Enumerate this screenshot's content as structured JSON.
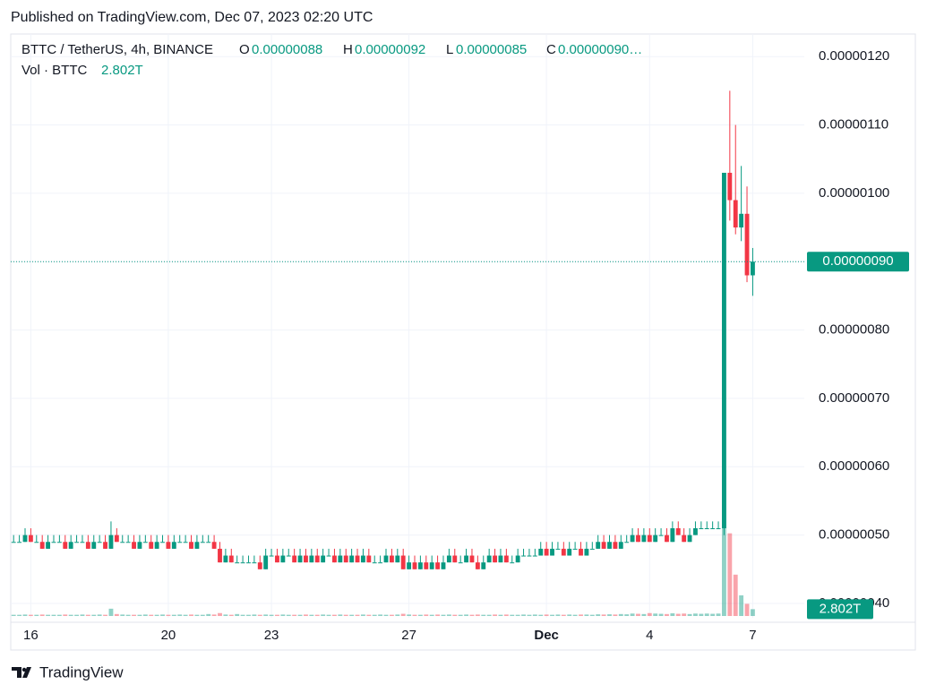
{
  "header": {
    "published": "Published on TradingView.com, Dec 07, 2023 02:20 UTC"
  },
  "footer": {
    "brand": "TradingView"
  },
  "chart_data": {
    "type": "candlestick",
    "legend": {
      "symbol": "BTTC / TetherUS, 4h, BINANCE",
      "o_key": "O",
      "o": "0.00000088",
      "h_key": "H",
      "h": "0.00000092",
      "l_key": "L",
      "l": "0.00000085",
      "c_key": "C",
      "c": "0.00000090…",
      "volume_key": "Vol · BTTC"
    },
    "up_color": "#089981",
    "down_color": "#f23645",
    "categories": [
      null,
      null,
      null,
      null,
      null,
      null,
      null,
      null,
      null,
      null,
      null,
      null,
      null,
      null,
      null,
      null,
      null,
      null,
      null,
      null,
      null,
      null,
      null,
      null,
      null,
      null,
      null,
      null,
      null,
      null,
      null,
      null,
      null,
      null,
      null,
      null,
      null,
      null,
      null,
      null,
      null,
      null,
      null,
      null,
      null,
      null,
      null,
      null,
      null,
      null,
      null,
      null,
      null,
      null,
      null,
      null,
      null,
      null,
      null,
      null,
      null,
      null,
      null,
      null,
      null,
      null,
      null,
      null,
      null,
      null,
      null,
      null,
      null,
      null,
      null,
      null,
      null,
      null,
      null,
      null,
      null,
      null,
      null,
      null,
      null,
      null,
      null,
      null,
      null,
      null,
      null,
      null,
      null,
      null,
      null,
      null,
      null,
      null,
      null,
      null,
      null,
      null,
      null,
      null,
      null,
      null,
      null,
      null,
      null,
      null,
      null,
      null,
      null,
      null,
      null,
      null,
      null,
      null,
      null,
      null,
      null,
      null,
      null,
      null,
      null,
      null,
      null,
      null,
      null,
      null
    ],
    "open": [
      4.9e-07,
      4.9e-07,
      4.9e-07,
      5e-07,
      4.9e-07,
      4.9e-07,
      4.8e-07,
      4.9e-07,
      4.9e-07,
      4.9e-07,
      4.8e-07,
      4.9e-07,
      4.9e-07,
      4.9e-07,
      4.8e-07,
      4.9e-07,
      4.9e-07,
      4.8e-07,
      5e-07,
      4.9e-07,
      4.9e-07,
      4.9e-07,
      4.8e-07,
      4.9e-07,
      4.9e-07,
      4.8e-07,
      4.9e-07,
      4.9e-07,
      4.8e-07,
      4.9e-07,
      4.9e-07,
      4.9e-07,
      4.8e-07,
      4.9e-07,
      4.9e-07,
      4.9e-07,
      4.8e-07,
      4.6e-07,
      4.7e-07,
      4.6e-07,
      4.6e-07,
      4.6e-07,
      4.6e-07,
      4.6e-07,
      4.5e-07,
      4.7e-07,
      4.7e-07,
      4.6e-07,
      4.7e-07,
      4.7e-07,
      4.6e-07,
      4.7e-07,
      4.6e-07,
      4.7e-07,
      4.6e-07,
      4.7e-07,
      4.7e-07,
      4.6e-07,
      4.7e-07,
      4.6e-07,
      4.7e-07,
      4.6e-07,
      4.7e-07,
      4.6e-07,
      4.6e-07,
      4.6e-07,
      4.7e-07,
      4.6e-07,
      4.7e-07,
      4.5e-07,
      4.6e-07,
      4.5e-07,
      4.6e-07,
      4.5e-07,
      4.6e-07,
      4.5e-07,
      4.6e-07,
      4.7e-07,
      4.6e-07,
      4.6e-07,
      4.7e-07,
      4.6e-07,
      4.5e-07,
      4.6e-07,
      4.7e-07,
      4.6e-07,
      4.7e-07,
      4.6e-07,
      4.6e-07,
      4.7e-07,
      4.7e-07,
      4.7e-07,
      4.7e-07,
      4.8e-07,
      4.7e-07,
      4.8e-07,
      4.8e-07,
      4.7e-07,
      4.8e-07,
      4.8e-07,
      4.7e-07,
      4.8e-07,
      4.8e-07,
      4.9e-07,
      4.8e-07,
      4.9e-07,
      4.8e-07,
      4.9e-07,
      4.9e-07,
      5e-07,
      4.9e-07,
      5e-07,
      4.9e-07,
      5e-07,
      5e-07,
      4.9e-07,
      5.1e-07,
      5e-07,
      4.9e-07,
      5e-07,
      5.1e-07,
      5.1e-07,
      5.1e-07,
      5.1e-07,
      5.1e-07,
      1.03e-06,
      9.9e-07,
      9.5e-07,
      9.7e-07,
      8.8e-07
    ],
    "high": [
      5e-07,
      5e-07,
      5.1e-07,
      5.1e-07,
      5e-07,
      5e-07,
      5e-07,
      5e-07,
      5e-07,
      5e-07,
      5e-07,
      5e-07,
      5e-07,
      5e-07,
      5e-07,
      5e-07,
      5e-07,
      5.2e-07,
      5.1e-07,
      5e-07,
      5e-07,
      5e-07,
      5e-07,
      5e-07,
      5e-07,
      5e-07,
      5e-07,
      5e-07,
      5e-07,
      5e-07,
      5e-07,
      5e-07,
      5e-07,
      5e-07,
      5e-07,
      5e-07,
      4.9e-07,
      4.8e-07,
      4.8e-07,
      4.7e-07,
      4.7e-07,
      4.7e-07,
      4.7e-07,
      4.7e-07,
      4.8e-07,
      4.8e-07,
      4.8e-07,
      4.8e-07,
      4.8e-07,
      4.8e-07,
      4.8e-07,
      4.8e-07,
      4.8e-07,
      4.8e-07,
      4.8e-07,
      4.8e-07,
      4.8e-07,
      4.8e-07,
      4.8e-07,
      4.8e-07,
      4.8e-07,
      4.8e-07,
      4.8e-07,
      4.7e-07,
      4.7e-07,
      4.8e-07,
      4.8e-07,
      4.8e-07,
      4.8e-07,
      4.7e-07,
      4.7e-07,
      4.7e-07,
      4.7e-07,
      4.7e-07,
      4.7e-07,
      4.7e-07,
      4.8e-07,
      4.8e-07,
      4.7e-07,
      4.8e-07,
      4.8e-07,
      4.7e-07,
      4.7e-07,
      4.8e-07,
      4.8e-07,
      4.8e-07,
      4.8e-07,
      4.7e-07,
      4.8e-07,
      4.8e-07,
      4.8e-07,
      4.8e-07,
      4.9e-07,
      4.9e-07,
      4.9e-07,
      4.9e-07,
      4.9e-07,
      4.9e-07,
      4.9e-07,
      4.9e-07,
      4.9e-07,
      4.9e-07,
      5e-07,
      5e-07,
      5e-07,
      5e-07,
      5e-07,
      5e-07,
      5.1e-07,
      5.1e-07,
      5.1e-07,
      5.1e-07,
      5.1e-07,
      5.1e-07,
      5.1e-07,
      5.2e-07,
      5.2e-07,
      5.1e-07,
      5.1e-07,
      5.2e-07,
      5.2e-07,
      5.2e-07,
      5.2e-07,
      5.2e-07,
      1.03e-06,
      1.15e-06,
      1.1e-06,
      1.04e-06,
      1.01e-06,
      9.2e-07
    ],
    "low": [
      4.9e-07,
      4.9e-07,
      4.9e-07,
      4.9e-07,
      4.9e-07,
      4.8e-07,
      4.8e-07,
      4.9e-07,
      4.9e-07,
      4.8e-07,
      4.8e-07,
      4.9e-07,
      4.9e-07,
      4.8e-07,
      4.8e-07,
      4.9e-07,
      4.8e-07,
      4.8e-07,
      4.9e-07,
      4.9e-07,
      4.9e-07,
      4.8e-07,
      4.8e-07,
      4.9e-07,
      4.8e-07,
      4.8e-07,
      4.9e-07,
      4.8e-07,
      4.8e-07,
      4.9e-07,
      4.9e-07,
      4.8e-07,
      4.8e-07,
      4.9e-07,
      4.9e-07,
      4.8e-07,
      4.6e-07,
      4.6e-07,
      4.6e-07,
      4.6e-07,
      4.6e-07,
      4.6e-07,
      4.6e-07,
      4.5e-07,
      4.5e-07,
      4.7e-07,
      4.6e-07,
      4.6e-07,
      4.7e-07,
      4.6e-07,
      4.6e-07,
      4.6e-07,
      4.6e-07,
      4.6e-07,
      4.6e-07,
      4.7e-07,
      4.6e-07,
      4.6e-07,
      4.6e-07,
      4.6e-07,
      4.6e-07,
      4.6e-07,
      4.6e-07,
      4.6e-07,
      4.6e-07,
      4.6e-07,
      4.6e-07,
      4.6e-07,
      4.5e-07,
      4.5e-07,
      4.5e-07,
      4.5e-07,
      4.5e-07,
      4.5e-07,
      4.5e-07,
      4.5e-07,
      4.6e-07,
      4.6e-07,
      4.6e-07,
      4.6e-07,
      4.6e-07,
      4.5e-07,
      4.5e-07,
      4.6e-07,
      4.6e-07,
      4.6e-07,
      4.6e-07,
      4.6e-07,
      4.6e-07,
      4.7e-07,
      4.7e-07,
      4.7e-07,
      4.7e-07,
      4.7e-07,
      4.7e-07,
      4.8e-07,
      4.7e-07,
      4.7e-07,
      4.8e-07,
      4.7e-07,
      4.7e-07,
      4.8e-07,
      4.8e-07,
      4.8e-07,
      4.8e-07,
      4.8e-07,
      4.8e-07,
      4.9e-07,
      4.9e-07,
      4.9e-07,
      4.9e-07,
      4.9e-07,
      4.9e-07,
      5e-07,
      4.9e-07,
      4.9e-07,
      5e-07,
      4.9e-07,
      4.9e-07,
      5e-07,
      5.1e-07,
      5.1e-07,
      5.1e-07,
      5.1e-07,
      5e-07,
      9.6e-07,
      9.4e-07,
      9.3e-07,
      8.7e-07,
      8.5e-07
    ],
    "close": [
      4.9e-07,
      4.9e-07,
      5e-07,
      4.9e-07,
      4.9e-07,
      4.8e-07,
      4.9e-07,
      4.9e-07,
      4.9e-07,
      4.8e-07,
      4.9e-07,
      4.9e-07,
      4.9e-07,
      4.8e-07,
      4.9e-07,
      4.9e-07,
      4.8e-07,
      5e-07,
      4.9e-07,
      4.9e-07,
      4.9e-07,
      4.8e-07,
      4.9e-07,
      4.9e-07,
      4.8e-07,
      4.9e-07,
      4.9e-07,
      4.8e-07,
      4.9e-07,
      4.9e-07,
      4.9e-07,
      4.8e-07,
      4.9e-07,
      4.9e-07,
      4.9e-07,
      4.8e-07,
      4.6e-07,
      4.7e-07,
      4.6e-07,
      4.6e-07,
      4.6e-07,
      4.6e-07,
      4.6e-07,
      4.5e-07,
      4.7e-07,
      4.7e-07,
      4.6e-07,
      4.7e-07,
      4.7e-07,
      4.6e-07,
      4.7e-07,
      4.6e-07,
      4.7e-07,
      4.6e-07,
      4.7e-07,
      4.7e-07,
      4.6e-07,
      4.7e-07,
      4.6e-07,
      4.7e-07,
      4.6e-07,
      4.7e-07,
      4.6e-07,
      4.6e-07,
      4.6e-07,
      4.7e-07,
      4.6e-07,
      4.7e-07,
      4.5e-07,
      4.6e-07,
      4.5e-07,
      4.6e-07,
      4.5e-07,
      4.6e-07,
      4.5e-07,
      4.6e-07,
      4.7e-07,
      4.6e-07,
      4.6e-07,
      4.7e-07,
      4.6e-07,
      4.5e-07,
      4.6e-07,
      4.7e-07,
      4.6e-07,
      4.7e-07,
      4.6e-07,
      4.6e-07,
      4.7e-07,
      4.7e-07,
      4.7e-07,
      4.7e-07,
      4.8e-07,
      4.7e-07,
      4.8e-07,
      4.8e-07,
      4.7e-07,
      4.8e-07,
      4.8e-07,
      4.7e-07,
      4.8e-07,
      4.8e-07,
      4.9e-07,
      4.8e-07,
      4.9e-07,
      4.8e-07,
      4.9e-07,
      4.9e-07,
      5e-07,
      4.9e-07,
      5e-07,
      4.9e-07,
      5e-07,
      5e-07,
      4.9e-07,
      5.1e-07,
      5e-07,
      4.9e-07,
      5e-07,
      5.1e-07,
      5.1e-07,
      5.1e-07,
      5.1e-07,
      5.1e-07,
      1.03e-06,
      9.9e-07,
      9.5e-07,
      9.7e-07,
      8.8e-07,
      9e-07
    ],
    "volume": [
      0.5,
      0.5,
      0.6,
      0.5,
      0.5,
      0.6,
      0.5,
      0.5,
      0.5,
      0.6,
      0.5,
      0.5,
      0.6,
      0.5,
      0.5,
      0.6,
      0.5,
      3,
      0.8,
      0.6,
      0.5,
      0.5,
      0.5,
      0.6,
      0.5,
      0.5,
      0.6,
      0.5,
      0.5,
      0.6,
      0.5,
      0.6,
      0.5,
      0.5,
      0.8,
      0.6,
      1.2,
      0.6,
      0.5,
      0.8,
      0.5,
      0.5,
      0.6,
      0.5,
      0.6,
      0.5,
      0.5,
      0.6,
      0.5,
      0.5,
      0.5,
      0.6,
      0.5,
      0.5,
      0.6,
      0.5,
      0.5,
      0.6,
      0.5,
      0.5,
      0.5,
      0.6,
      0.5,
      0.5,
      0.6,
      0.5,
      0.5,
      0.6,
      0.9,
      0.6,
      0.5,
      0.5,
      0.6,
      0.5,
      0.6,
      0.5,
      0.6,
      0.5,
      0.5,
      0.6,
      0.5,
      0.6,
      0.5,
      0.5,
      0.6,
      0.5,
      0.6,
      0.5,
      0.5,
      0.6,
      0.5,
      0.6,
      0.5,
      0.6,
      0.5,
      0.6,
      0.5,
      0.6,
      0.5,
      0.6,
      0.6,
      0.5,
      0.7,
      0.6,
      0.7,
      0.6,
      0.8,
      0.7,
      1.0,
      0.9,
      0.8,
      1.2,
      1.0,
      0.9,
      0.8,
      1.1,
      0.9,
      1.0,
      0.8,
      1.0,
      0.9,
      1.0,
      0.9,
      1.0,
      60,
      34,
      17,
      8.5,
      5,
      2.802
    ],
    "volume_label": "2.802T",
    "last_price_label": "0.00000090",
    "xlim": [
      -0.5,
      138
    ],
    "xticks": [
      {
        "value": 3,
        "label": "16"
      },
      {
        "value": 27,
        "label": "20"
      },
      {
        "value": 45,
        "label": "23"
      },
      {
        "value": 69,
        "label": "27"
      },
      {
        "value": 93,
        "label": "Dec"
      },
      {
        "value": 111,
        "label": "4"
      },
      {
        "value": 129,
        "label": "7"
      }
    ],
    "ylim": [
      3.79e-07,
      1.233e-06
    ],
    "yticks": [
      {
        "value": 4e-07,
        "label": "0.00000040"
      },
      {
        "value": 5e-07,
        "label": "0.00000050"
      },
      {
        "value": 6e-07,
        "label": "0.00000060"
      },
      {
        "value": 7e-07,
        "label": "0.00000070"
      },
      {
        "value": 8e-07,
        "label": "0.00000080"
      },
      {
        "value": 9e-07,
        "label": "0.00000090"
      },
      {
        "value": 1e-06,
        "label": "0.00000100"
      },
      {
        "value": 1.1e-06,
        "label": "0.00000110"
      },
      {
        "value": 1.2e-06,
        "label": "0.00000120"
      }
    ],
    "grid": true
  }
}
